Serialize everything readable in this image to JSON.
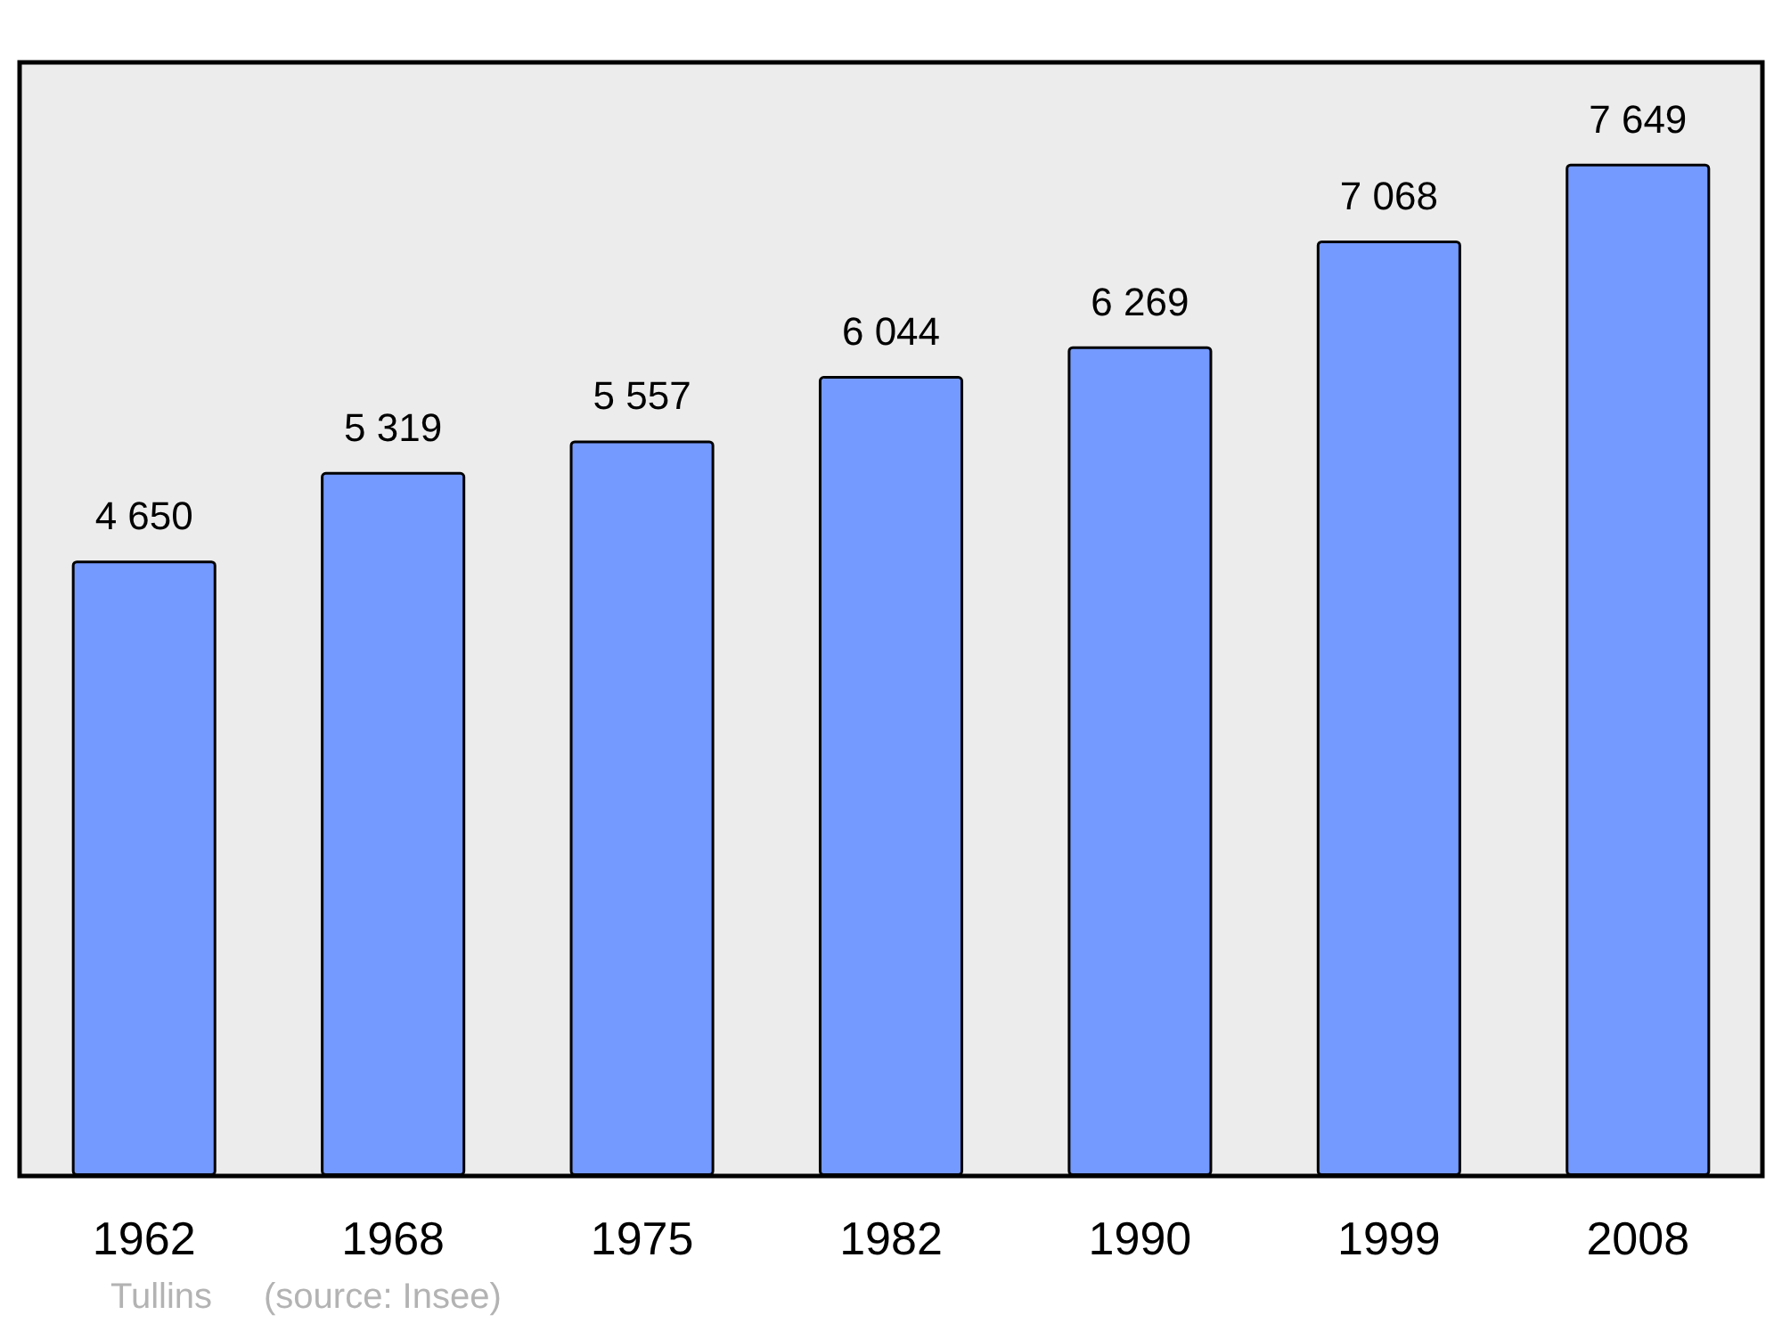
{
  "chart_data": {
    "type": "bar",
    "categories": [
      "1962",
      "1968",
      "1975",
      "1982",
      "1990",
      "1999",
      "2008"
    ],
    "values": [
      4650,
      5319,
      5557,
      6044,
      6269,
      7068,
      7649
    ],
    "value_labels": [
      "4 650",
      "5 319",
      "5 557",
      "6 044",
      "6 269",
      "7 068",
      "7 649"
    ],
    "color": "#7499ff",
    "grid": false,
    "annotations": [
      "Tullins",
      "(source: Insee)"
    ]
  }
}
